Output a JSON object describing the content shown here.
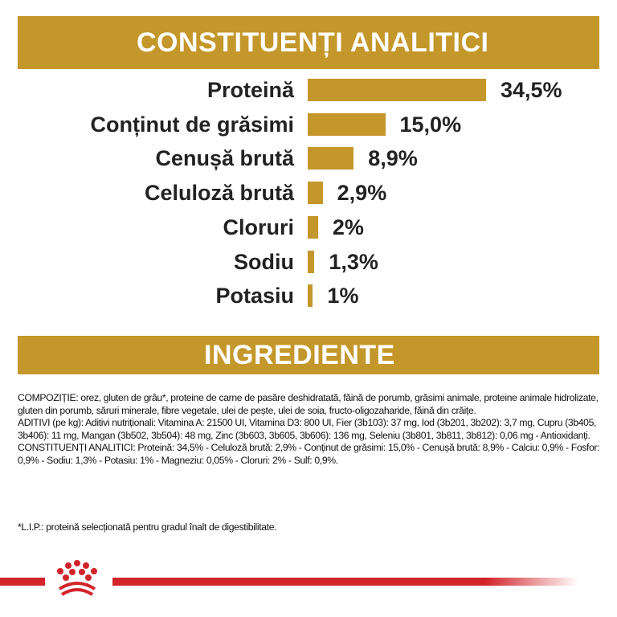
{
  "headers": {
    "analytic": "CONSTITUENȚI ANALITICI",
    "ingredients": "INGREDIENTE"
  },
  "chart_data": {
    "type": "bar",
    "orientation": "horizontal",
    "categories": [
      "Proteină",
      "Conținut de grăsimi",
      "Cenușă brută",
      "Celuloză brută",
      "Cloruri",
      "Sodiu",
      "Potasiu"
    ],
    "values": [
      34.5,
      15.0,
      8.9,
      2.9,
      2,
      1.3,
      1
    ],
    "data_labels": [
      "34,5%",
      "15,0%",
      "8,9%",
      "2,9%",
      "2%",
      "1,3%",
      "1%"
    ],
    "bar_color": "#C4972A",
    "grid": false
  },
  "ingredients_text": {
    "composition": "COMPOZIȚIE: orez, gluten de grâu*, proteine de carne de pasăre deshidratată, făină de porumb, grăsimi animale, proteine animale hidrolizate, gluten din porumb, săruri minerale, fibre vegetale, ulei de pește, ulei de soia, fructo-oligozaharide, făină din crăițe.",
    "additives": "ADITIVI (pe kg): Aditivi nutriționali: Vitamina A: 21500 UI, Vitamina D3: 800 UI, Fier (3b103): 37 mg, Iod (3b201, 3b202): 3,7 mg, Cupru (3b405, 3b406): 11 mg, Mangan (3b502, 3b504): 48 mg, Zinc (3b603, 3b605, 3b606): 136 mg, Seleniu (3b801, 3b811, 3b812): 0,06 mg - Antioxidanți.",
    "analytic": "CONSTITUENȚI ANALITICI: Proteină: 34,5% - Celuloză brută: 2,9% - Conținut de grăsimi: 15,0% - Cenușă brută: 8,9% - Calciu: 0,9% - Fosfor: 0,9% - Sodiu: 1,3% - Potasiu: 1% - Magneziu: 0,05% - Cloruri: 2% - Sulf: 0,9%.",
    "footnote": "*L.I.P.: proteină selecționată pentru gradul înalt de digestibilitate."
  },
  "brand": {
    "logo": "crown-logo",
    "color": "#D2232A"
  }
}
